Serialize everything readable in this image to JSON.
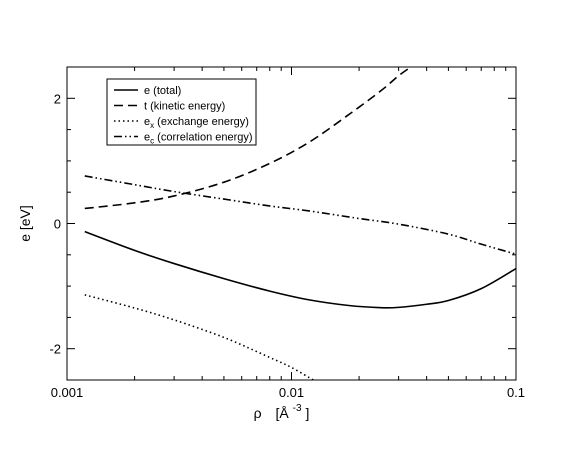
{
  "chart_data": {
    "type": "line",
    "xscale": "log",
    "xlim": [
      0.001,
      0.1
    ],
    "ylim": [
      -2.5,
      2.5
    ],
    "grid": false,
    "legend_position": "top-left",
    "xlabel_main": "ρ",
    "xlabel_unit_open": "[Å",
    "xlabel_unit_exp": "-3",
    "xlabel_unit_close": "]",
    "ylabel": "e [eV]",
    "x_ticks": [
      {
        "value": 0.001,
        "label": "0.001"
      },
      {
        "value": 0.01,
        "label": "0.01"
      },
      {
        "value": 0.1,
        "label": "0.1"
      }
    ],
    "y_ticks": [
      {
        "value": 2,
        "label": "2"
      },
      {
        "value": 0,
        "label": "0"
      },
      {
        "value": -2,
        "label": "-2"
      }
    ],
    "series": [
      {
        "key": "total",
        "legend_main": "e",
        "legend_sub": "",
        "legend_rest": " (total)",
        "dash": "solid",
        "points": [
          [
            0.0012,
            -0.13
          ],
          [
            0.002,
            -0.43
          ],
          [
            0.003,
            -0.64
          ],
          [
            0.005,
            -0.88
          ],
          [
            0.008,
            -1.08
          ],
          [
            0.012,
            -1.22
          ],
          [
            0.018,
            -1.31
          ],
          [
            0.025,
            -1.345
          ],
          [
            0.03,
            -1.34
          ],
          [
            0.04,
            -1.29
          ],
          [
            0.05,
            -1.23
          ],
          [
            0.07,
            -1.04
          ],
          [
            0.1,
            -0.72
          ]
        ]
      },
      {
        "key": "kinetic",
        "legend_main": "t",
        "legend_sub": "",
        "legend_rest": " (kinetic energy)",
        "dash": "dashed",
        "points": [
          [
            0.0012,
            0.24
          ],
          [
            0.002,
            0.33
          ],
          [
            0.003,
            0.44
          ],
          [
            0.005,
            0.66
          ],
          [
            0.008,
            0.96
          ],
          [
            0.012,
            1.3
          ],
          [
            0.018,
            1.74
          ],
          [
            0.025,
            2.12
          ],
          [
            0.03,
            2.36
          ],
          [
            0.034,
            2.5
          ]
        ]
      },
      {
        "key": "exchange",
        "legend_main": "e",
        "legend_sub": "x",
        "legend_rest": " (exchange energy)",
        "dash": "dotted",
        "points": [
          [
            0.0012,
            -1.14
          ],
          [
            0.002,
            -1.35
          ],
          [
            0.003,
            -1.54
          ],
          [
            0.005,
            -1.82
          ],
          [
            0.008,
            -2.14
          ],
          [
            0.01,
            -2.3
          ],
          [
            0.0125,
            -2.5
          ]
        ]
      },
      {
        "key": "correlation",
        "legend_main": "e",
        "legend_sub": "c",
        "legend_rest": " (correlation energy)",
        "dash": "dashdotdot",
        "points": [
          [
            0.0012,
            0.76
          ],
          [
            0.002,
            0.62
          ],
          [
            0.003,
            0.51
          ],
          [
            0.005,
            0.39
          ],
          [
            0.008,
            0.28
          ],
          [
            0.012,
            0.2
          ],
          [
            0.02,
            0.08
          ],
          [
            0.03,
            -0.01
          ],
          [
            0.05,
            -0.17
          ],
          [
            0.07,
            -0.33
          ],
          [
            0.1,
            -0.49
          ]
        ]
      }
    ]
  }
}
